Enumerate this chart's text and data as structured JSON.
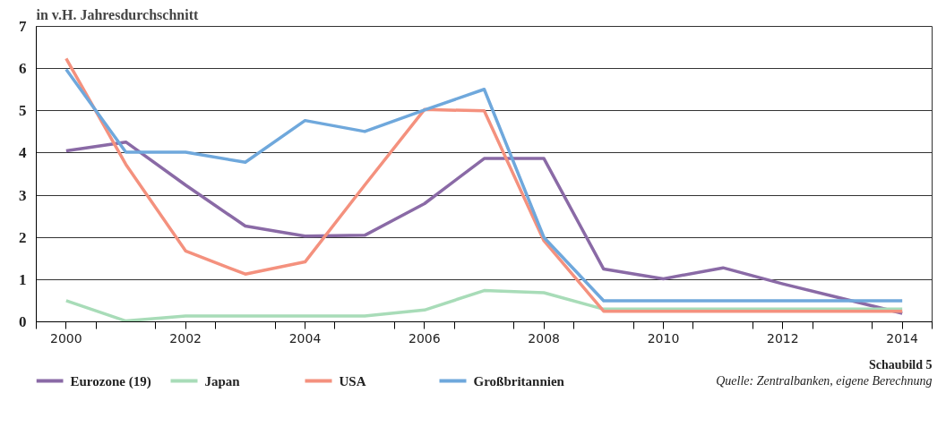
{
  "chart_data": {
    "type": "line",
    "title": "in v.H. Jahresdurchschnitt",
    "x": [
      2000,
      2001,
      2002,
      2003,
      2004,
      2005,
      2006,
      2007,
      2008,
      2009,
      2010,
      2011,
      2012,
      2013,
      2014
    ],
    "series": [
      {
        "name": "Eurozone (19)",
        "color": "#8a6aa6",
        "values": [
          4.05,
          4.26,
          3.24,
          2.27,
          2.03,
          2.05,
          2.8,
          3.87,
          3.87,
          1.25,
          1.02,
          1.28,
          0.9,
          0.55,
          0.2
        ]
      },
      {
        "name": "Japan",
        "color": "#a8dcb8",
        "values": [
          0.5,
          0.02,
          0.14,
          0.14,
          0.14,
          0.14,
          0.28,
          0.74,
          0.69,
          0.3,
          0.3,
          0.3,
          0.3,
          0.3,
          0.3
        ]
      },
      {
        "name": "USA",
        "color": "#f4917e",
        "values": [
          6.24,
          3.73,
          1.68,
          1.13,
          1.42,
          3.24,
          5.03,
          5.0,
          1.92,
          0.25,
          0.25,
          0.25,
          0.25,
          0.25,
          0.25
        ]
      },
      {
        "name": "Großbritannien",
        "color": "#6fa8dc",
        "values": [
          5.98,
          4.02,
          4.02,
          3.78,
          4.77,
          4.51,
          5.02,
          5.51,
          2.0,
          0.5,
          0.5,
          0.5,
          0.5,
          0.5,
          0.5
        ]
      }
    ],
    "xlim": [
      1999.5,
      2014.5
    ],
    "xticks": [
      {
        "value": 1999.5,
        "label": null
      },
      {
        "value": 2000,
        "label": "2000"
      },
      {
        "value": 2000.5,
        "label": null
      },
      {
        "value": 2001.5,
        "label": null
      },
      {
        "value": 2002,
        "label": "2002"
      },
      {
        "value": 2002.5,
        "label": null
      },
      {
        "value": 2003.5,
        "label": null
      },
      {
        "value": 2004,
        "label": "2004"
      },
      {
        "value": 2004.5,
        "label": null
      },
      {
        "value": 2005.5,
        "label": null
      },
      {
        "value": 2006,
        "label": "2006"
      },
      {
        "value": 2006.5,
        "label": null
      },
      {
        "value": 2007.5,
        "label": null
      },
      {
        "value": 2008,
        "label": "2008"
      },
      {
        "value": 2008.5,
        "label": null
      },
      {
        "value": 2009.5,
        "label": null
      },
      {
        "value": 2010,
        "label": "2010"
      },
      {
        "value": 2010.5,
        "label": null
      },
      {
        "value": 2011.5,
        "label": null
      },
      {
        "value": 2012,
        "label": "2012"
      },
      {
        "value": 2012.5,
        "label": null
      },
      {
        "value": 2013.5,
        "label": null
      },
      {
        "value": 2014,
        "label": "2014"
      },
      {
        "value": 2014.5,
        "label": null
      }
    ],
    "ylim": [
      0,
      7
    ],
    "yticks": [
      0,
      1,
      2,
      3,
      4,
      5,
      6,
      7
    ],
    "grid": "y",
    "legend": "bottom",
    "marker": "none",
    "line_style": "solid",
    "annotations": [
      "Schaubild 5",
      "Quelle: Zentralbanken, eigene Berechnung"
    ]
  }
}
